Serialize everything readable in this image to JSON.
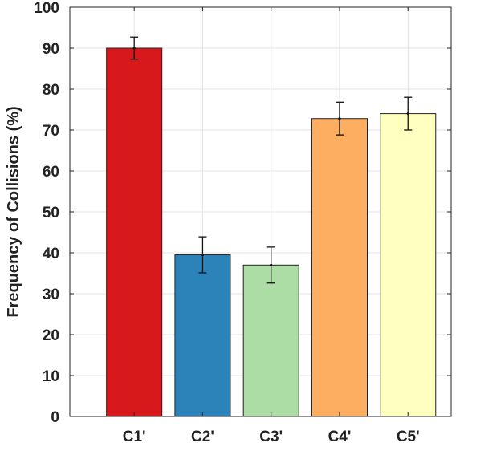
{
  "chart_data": {
    "type": "bar",
    "categories": [
      "C1'",
      "C2'",
      "C3'",
      "C4'",
      "C5'"
    ],
    "values": [
      90,
      39.5,
      37,
      72.8,
      74
    ],
    "errors": [
      2.7,
      4.4,
      4.4,
      4,
      4
    ],
    "colors": [
      "#d7191c",
      "#2b83ba",
      "#abdda4",
      "#fdae61",
      "#ffffbf"
    ],
    "title": "",
    "xlabel": "",
    "ylabel": "Frequency of Collisions (%)",
    "ylim": [
      0,
      100
    ],
    "yticks": [
      "0",
      "10",
      "20",
      "30",
      "40",
      "50",
      "60",
      "70",
      "80",
      "90",
      "100"
    ],
    "grid": true,
    "legend": "none"
  }
}
